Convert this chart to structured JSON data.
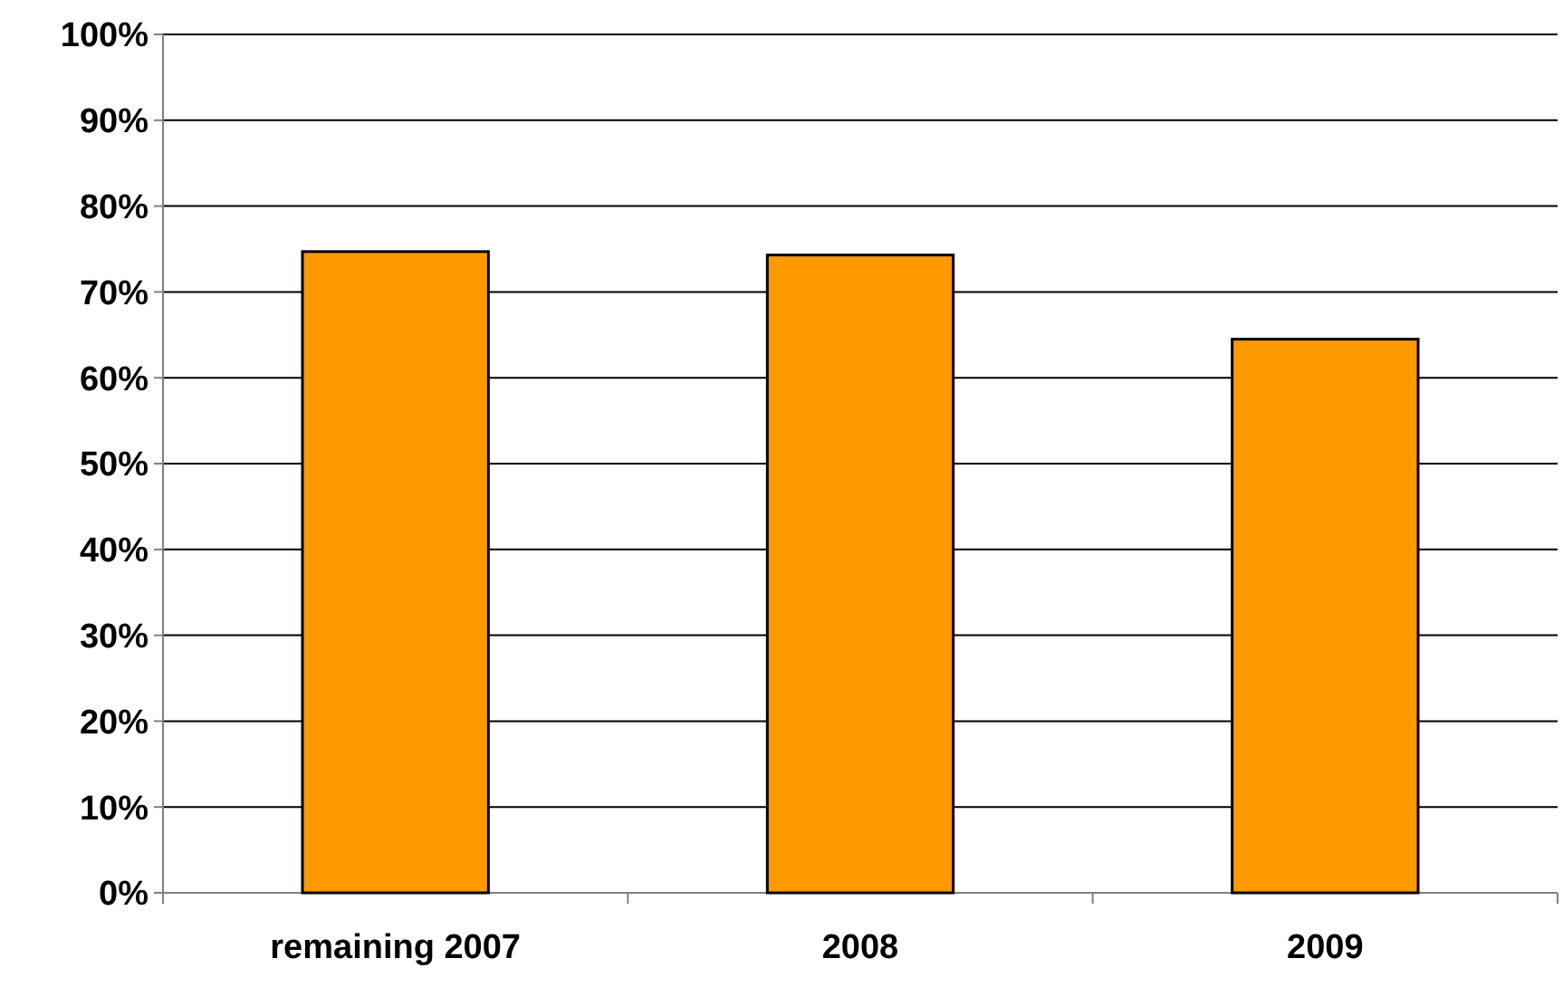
{
  "chart_data": {
    "type": "bar",
    "categories": [
      "remaining 2007",
      "2008",
      "2009"
    ],
    "values": [
      74.7,
      74.3,
      64.5
    ],
    "color": "#ff9900",
    "ylim": [
      0,
      100
    ],
    "yticks": [
      {
        "value": 0,
        "label": "0%"
      },
      {
        "value": 10,
        "label": "10%"
      },
      {
        "value": 20,
        "label": "20%"
      },
      {
        "value": 30,
        "label": "30%"
      },
      {
        "value": 40,
        "label": "40%"
      },
      {
        "value": 50,
        "label": "50%"
      },
      {
        "value": 60,
        "label": "60%"
      },
      {
        "value": 70,
        "label": "70%"
      },
      {
        "value": 80,
        "label": "80%"
      },
      {
        "value": 90,
        "label": "90%"
      },
      {
        "value": 100,
        "label": "100%"
      }
    ],
    "grid": "y"
  }
}
